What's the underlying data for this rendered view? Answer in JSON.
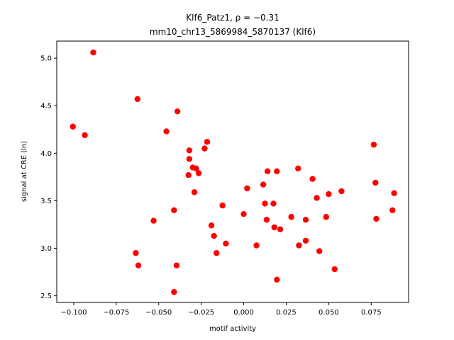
{
  "chart_data": {
    "type": "scatter",
    "title_line1": "Klf6_Patz1, ρ = −0.31",
    "title_line2": "mm10_chr13_5869984_5870137 (Klf6)",
    "xlabel": "motif activity",
    "ylabel": "signal at CRE (ln)",
    "xlim": [
      -0.11,
      0.097
    ],
    "ylim": [
      2.43,
      5.18
    ],
    "xticks": [
      -0.1,
      -0.075,
      -0.05,
      -0.025,
      0.0,
      0.025,
      0.05,
      0.075
    ],
    "xtick_labels": [
      "−0.100",
      "−0.075",
      "−0.050",
      "−0.025",
      "0.000",
      "0.025",
      "0.050",
      "0.075"
    ],
    "yticks": [
      2.5,
      3.0,
      3.5,
      4.0,
      4.5,
      5.0
    ],
    "ytick_labels": [
      "2.5",
      "3.0",
      "3.5",
      "4.0",
      "4.5",
      "5.0"
    ],
    "marker_color": "#ff0000",
    "grid": false,
    "points": [
      {
        "x": -0.0885,
        "y": 5.06
      },
      {
        "x": -0.1005,
        "y": 4.28
      },
      {
        "x": -0.0935,
        "y": 4.19
      },
      {
        "x": -0.0625,
        "y": 4.57
      },
      {
        "x": -0.039,
        "y": 4.44
      },
      {
        "x": -0.0455,
        "y": 4.23
      },
      {
        "x": -0.0215,
        "y": 4.12
      },
      {
        "x": -0.023,
        "y": 4.05
      },
      {
        "x": -0.032,
        "y": 4.03
      },
      {
        "x": -0.032,
        "y": 3.94
      },
      {
        "x": -0.03,
        "y": 3.85
      },
      {
        "x": -0.028,
        "y": 3.84
      },
      {
        "x": -0.0265,
        "y": 3.79
      },
      {
        "x": -0.0325,
        "y": 3.77
      },
      {
        "x": -0.029,
        "y": 3.59
      },
      {
        "x": -0.041,
        "y": 3.4
      },
      {
        "x": -0.053,
        "y": 3.29
      },
      {
        "x": -0.0125,
        "y": 3.45
      },
      {
        "x": -0.019,
        "y": 3.24
      },
      {
        "x": -0.0175,
        "y": 3.13
      },
      {
        "x": -0.0105,
        "y": 3.05
      },
      {
        "x": -0.016,
        "y": 2.95
      },
      {
        "x": -0.0635,
        "y": 2.95
      },
      {
        "x": -0.062,
        "y": 2.82
      },
      {
        "x": -0.0395,
        "y": 2.82
      },
      {
        "x": -0.041,
        "y": 2.54
      },
      {
        "x": 0.0,
        "y": 3.36
      },
      {
        "x": 0.002,
        "y": 3.63
      },
      {
        "x": 0.0075,
        "y": 3.03
      },
      {
        "x": 0.0115,
        "y": 3.67
      },
      {
        "x": 0.0125,
        "y": 3.47
      },
      {
        "x": 0.0135,
        "y": 3.3
      },
      {
        "x": 0.014,
        "y": 3.81
      },
      {
        "x": 0.0175,
        "y": 3.47
      },
      {
        "x": 0.018,
        "y": 3.22
      },
      {
        "x": 0.0195,
        "y": 3.81
      },
      {
        "x": 0.0215,
        "y": 3.2
      },
      {
        "x": 0.0195,
        "y": 2.67
      },
      {
        "x": 0.028,
        "y": 3.33
      },
      {
        "x": 0.032,
        "y": 3.84
      },
      {
        "x": 0.0325,
        "y": 3.03
      },
      {
        "x": 0.0365,
        "y": 3.3
      },
      {
        "x": 0.0365,
        "y": 3.08
      },
      {
        "x": 0.0405,
        "y": 3.73
      },
      {
        "x": 0.043,
        "y": 3.53
      },
      {
        "x": 0.0445,
        "y": 2.97
      },
      {
        "x": 0.0485,
        "y": 3.33
      },
      {
        "x": 0.05,
        "y": 3.57
      },
      {
        "x": 0.0535,
        "y": 2.78
      },
      {
        "x": 0.0575,
        "y": 3.6
      },
      {
        "x": 0.0765,
        "y": 4.09
      },
      {
        "x": 0.0775,
        "y": 3.69
      },
      {
        "x": 0.078,
        "y": 3.31
      },
      {
        "x": 0.0875,
        "y": 3.4
      },
      {
        "x": 0.0885,
        "y": 3.58
      }
    ]
  }
}
